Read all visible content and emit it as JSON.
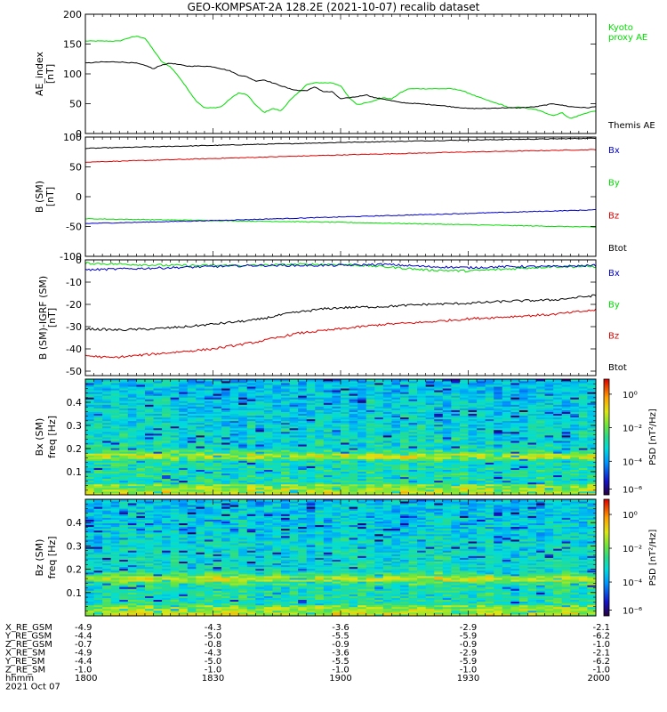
{
  "title": "GEO-KOMPSAT-2A 128.2E (2021-10-07) recalib dataset",
  "chart_data": [
    {
      "type": "line",
      "panel": "ae_index",
      "ylabel": "AE_index",
      "yunit": "[nT]",
      "ylim": [
        0,
        200
      ],
      "yticks": [
        0,
        50,
        100,
        150,
        200
      ],
      "legend": [
        {
          "name": "Kyoto proxy AE",
          "lines": [
            "Kyoto",
            "proxy AE"
          ],
          "color": "#00dd00"
        },
        {
          "name": "Themis AE",
          "lines": [
            "Themis AE"
          ],
          "color": "#000000"
        }
      ],
      "series": [
        {
          "name": "Kyoto proxy AE",
          "color": "#00dd00",
          "x": [
            1800,
            1808,
            1810,
            1812,
            1814,
            1816,
            1818,
            1820,
            1822,
            1824,
            1826,
            1828,
            1830,
            1832,
            1834,
            1836,
            1838,
            1840,
            1842,
            1844,
            1846,
            1848,
            1850,
            1852,
            1854,
            1856,
            1858,
            1900,
            1902,
            1904,
            1906,
            1908,
            1910,
            1912,
            1914,
            1916,
            1918,
            1920,
            1922,
            1924,
            1926,
            1928,
            1930,
            1932,
            1934,
            1936,
            1938,
            1940,
            1942,
            1944,
            1946,
            1948,
            1950,
            1952,
            1954,
            1956,
            1958,
            2000
          ],
          "y": [
            155,
            155,
            160,
            163,
            160,
            140,
            120,
            112,
            95,
            75,
            55,
            43,
            43,
            45,
            58,
            68,
            65,
            48,
            35,
            42,
            38,
            55,
            68,
            82,
            85,
            85,
            85,
            80,
            60,
            48,
            52,
            55,
            60,
            58,
            68,
            75,
            75,
            75,
            75,
            75,
            75,
            73,
            68,
            62,
            57,
            52,
            48,
            42,
            45,
            42,
            40,
            35,
            30,
            35,
            25,
            30,
            35,
            38
          ]
        },
        {
          "name": "Themis AE",
          "color": "#000000",
          "x": [
            1800,
            1804,
            1808,
            1812,
            1815,
            1816,
            1817,
            1818,
            1820,
            1824,
            1828,
            1830,
            1834,
            1836,
            1838,
            1840,
            1842,
            1844,
            1846,
            1848,
            1850,
            1852,
            1854,
            1856,
            1858,
            1900,
            1902,
            1904,
            1906,
            1908,
            1910,
            1914,
            1918,
            1922,
            1926,
            1930,
            1934,
            1938,
            1942,
            1946,
            1950,
            1954,
            1958,
            2000
          ],
          "y": [
            118,
            120,
            120,
            118,
            112,
            108,
            112,
            115,
            118,
            113,
            113,
            112,
            105,
            98,
            95,
            88,
            90,
            85,
            80,
            75,
            72,
            72,
            78,
            70,
            70,
            58,
            60,
            62,
            65,
            60,
            58,
            52,
            50,
            48,
            45,
            42,
            42,
            43,
            43,
            45,
            50,
            45,
            43,
            45
          ]
        }
      ]
    },
    {
      "type": "line",
      "panel": "b_sm",
      "ylabel": "B (SM)",
      "yunit": "[nT]",
      "ylim": [
        -100,
        100
      ],
      "yticks": [
        -100,
        -50,
        0,
        50,
        100
      ],
      "legend": [
        {
          "name": "Bx",
          "color": "#0000cc"
        },
        {
          "name": "By",
          "color": "#00dd00"
        },
        {
          "name": "Bz",
          "color": "#dd0000"
        },
        {
          "name": "Btot",
          "color": "#000000"
        }
      ],
      "series": [
        {
          "name": "Btot",
          "color": "#000000",
          "x": [
            1800,
            1830,
            1900,
            1930,
            2000
          ],
          "y": [
            81,
            86,
            91,
            95,
            98
          ]
        },
        {
          "name": "Bz",
          "color": "#dd0000",
          "x": [
            1800,
            1830,
            1900,
            1930,
            2000
          ],
          "y": [
            58,
            64,
            70,
            75,
            79
          ]
        },
        {
          "name": "By",
          "color": "#00dd00",
          "x": [
            1800,
            1830,
            1900,
            1930,
            2000
          ],
          "y": [
            -37,
            -40,
            -43,
            -47,
            -51
          ]
        },
        {
          "name": "Bx",
          "color": "#0000cc",
          "x": [
            1800,
            1830,
            1900,
            1930,
            2000
          ],
          "y": [
            -45,
            -40,
            -34,
            -28,
            -22
          ]
        }
      ]
    },
    {
      "type": "line",
      "panel": "b_sm_minus_igrf",
      "ylabel": "B (SM)-IGRF (SM)",
      "yunit": "[nT]",
      "ylim": [
        -52,
        0
      ],
      "yticks": [
        0,
        -10,
        -20,
        -30,
        -40,
        -50
      ],
      "legend": [
        {
          "name": "Bx",
          "color": "#0000cc"
        },
        {
          "name": "By",
          "color": "#00dd00"
        },
        {
          "name": "Bz",
          "color": "#dd0000"
        },
        {
          "name": "Btot",
          "color": "#000000"
        }
      ],
      "series": [
        {
          "name": "By",
          "color": "#00dd00",
          "x": [
            1800,
            1810,
            1820,
            1830,
            1840,
            1850,
            1900,
            1910,
            1920,
            1930,
            1940,
            1950,
            2000
          ],
          "y": [
            -1.5,
            -2,
            -2.5,
            -2.5,
            -2.5,
            -2,
            -2,
            -3,
            -4.5,
            -5,
            -4,
            -3,
            -3
          ]
        },
        {
          "name": "Bx",
          "color": "#0000cc",
          "x": [
            1800,
            1810,
            1820,
            1830,
            1840,
            1850,
            1900,
            1910,
            1920,
            1930,
            1940,
            1950,
            2000
          ],
          "y": [
            -4.5,
            -4,
            -3.5,
            -3,
            -2.5,
            -2.5,
            -2.5,
            -2,
            -3,
            -3.5,
            -3,
            -3,
            -2.5
          ]
        },
        {
          "name": "Btot",
          "color": "#000000",
          "x": [
            1800,
            1808,
            1816,
            1824,
            1832,
            1840,
            1848,
            1856,
            1900,
            1910,
            1920,
            1930,
            1940,
            1950,
            2000
          ],
          "y": [
            -31,
            -31.5,
            -31,
            -30,
            -28.5,
            -27,
            -24,
            -22,
            -21.5,
            -21,
            -20,
            -19.5,
            -18.5,
            -18,
            -16
          ]
        },
        {
          "name": "Bz",
          "color": "#dd0000",
          "x": [
            1800,
            1806,
            1812,
            1818,
            1824,
            1830,
            1840,
            1850,
            1900,
            1910,
            1920,
            1930,
            1940,
            1950,
            2000
          ],
          "y": [
            -43,
            -44,
            -43,
            -42,
            -41,
            -40,
            -37,
            -33,
            -31,
            -29,
            -28,
            -26.5,
            -25.5,
            -24.5,
            -22.5
          ]
        }
      ]
    },
    {
      "type": "heatmap",
      "panel": "bx_sm_spectrogram",
      "ylabel": "Bx (SM)",
      "yunit": "freq [Hz]",
      "ylim": [
        0,
        0.5
      ],
      "yticks": [
        0.1,
        0.2,
        0.3,
        0.4
      ],
      "colorbar": {
        "label": "PSD [nT²/Hz]",
        "ticks": [
          "10⁰",
          "10⁻²",
          "10⁻⁴",
          "10⁻⁶"
        ]
      },
      "band_hz": 0.17
    },
    {
      "type": "heatmap",
      "panel": "bz_sm_spectrogram",
      "ylabel": "Bz (SM)",
      "yunit": "freq [Hz]",
      "ylim": [
        0,
        0.5
      ],
      "yticks": [
        0.1,
        0.2,
        0.3,
        0.4
      ],
      "colorbar": {
        "label": "PSD [nT²/Hz]",
        "ticks": [
          "10⁰",
          "10⁻²",
          "10⁻⁴",
          "10⁻⁶"
        ]
      },
      "band_hz": 0.16
    }
  ],
  "xaxis": {
    "ticks": [
      "1800",
      "1830",
      "1900",
      "1930",
      "2000"
    ],
    "tick_hhmm": [
      1800,
      1830,
      1900,
      1930,
      2000
    ]
  },
  "ephemeris": [
    {
      "label": "X_RE_GSM",
      "values": [
        "-4.9",
        "-4.3",
        "-3.6",
        "-2.9",
        "-2.1"
      ]
    },
    {
      "label": "Y_RE_GSM",
      "values": [
        "-4.4",
        "-5.0",
        "-5.5",
        "-5.9",
        "-6.2"
      ]
    },
    {
      "label": "Z_RE_GSM",
      "values": [
        "-0.7",
        "-0.8",
        "-0.9",
        "-0.9",
        "-1.0"
      ]
    },
    {
      "label": "X_RE_SM",
      "values": [
        "-4.9",
        "-4.3",
        "-3.6",
        "-2.9",
        "-2.1"
      ]
    },
    {
      "label": "Y_RE_SM",
      "values": [
        "-4.4",
        "-5.0",
        "-5.5",
        "-5.9",
        "-6.2"
      ]
    },
    {
      "label": "Z_RE_SM",
      "values": [
        "-1.0",
        "-1.0",
        "-1.0",
        "-1.0",
        "-1.0"
      ]
    },
    {
      "label": "hhmm",
      "values": [
        "1800",
        "1830",
        "1900",
        "1930",
        "2000"
      ]
    }
  ],
  "date_label": "2021 Oct 07"
}
